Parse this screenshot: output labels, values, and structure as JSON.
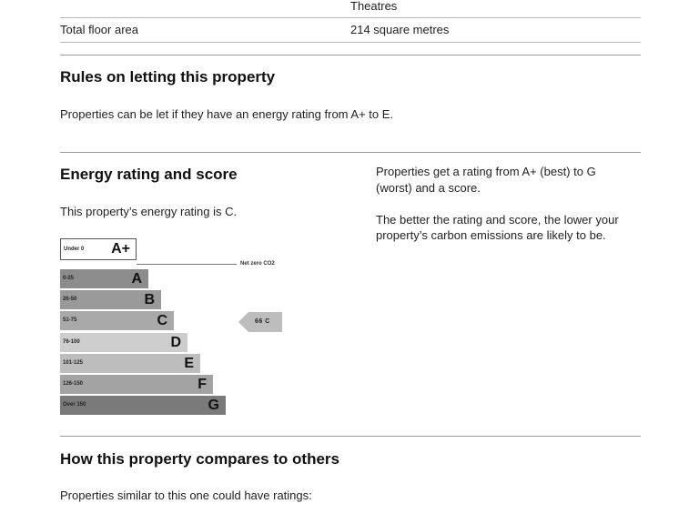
{
  "table": {
    "row_partial": {
      "value": "Theatres"
    },
    "row_floor_area": {
      "label": "Total floor area",
      "value": "214 square metres"
    }
  },
  "letting": {
    "heading": "Rules on letting this property",
    "text": "Properties can be let if they have an energy rating from A+ to E."
  },
  "energy": {
    "heading": "Energy rating and score",
    "current_text": "This property’s energy rating is C.",
    "info_line1": "Properties get a rating from A+ (best) to G",
    "info_line2": "(worst) and a score.",
    "info_line3": "The better the rating and score, the lower your",
    "info_line4": "property’s carbon emissions are likely to be.",
    "net_zero_label": "Net zero CO2",
    "current_score": 66,
    "current_rating": "C",
    "pointer_label": "66  C",
    "aplus": {
      "range": "Under 0",
      "letter": "A+"
    },
    "bands": [
      {
        "range": "0-25",
        "letter": "A",
        "color": "#8c8c8c"
      },
      {
        "range": "26-50",
        "letter": "B",
        "color": "#9a9a9a"
      },
      {
        "range": "51-75",
        "letter": "C",
        "color": "#a9a9a9"
      },
      {
        "range": "76-100",
        "letter": "D",
        "color": "#cdcdcd"
      },
      {
        "range": "101-125",
        "letter": "E",
        "color": "#bdbdbd"
      },
      {
        "range": "126-150",
        "letter": "F",
        "color": "#a3a3a3"
      },
      {
        "range": "Over 150",
        "letter": "G",
        "color": "#7a7a7a"
      }
    ]
  },
  "compare": {
    "heading": "How this property compares to others",
    "text": "Properties similar to this one could have ratings:"
  },
  "colors": {
    "pointer_fill": "#bdbdbd",
    "rule": "#9a9a9a"
  }
}
